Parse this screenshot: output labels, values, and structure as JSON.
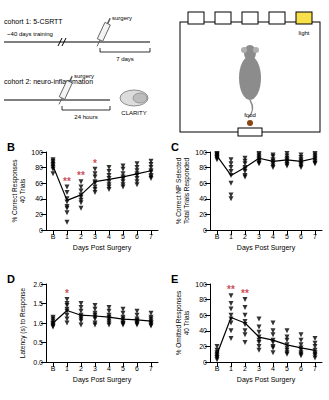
{
  "schematic": {
    "cohort_1": {
      "label": "cohort 1: 5-CSRTT",
      "training": "~40 days training",
      "surgery": "surgery",
      "interval": "7 days"
    },
    "cohort_2": {
      "label": "cohort 2: neuro-inflammation",
      "surgery": "surgery",
      "interval": "24 hours",
      "method": "CLARITY"
    },
    "apparatus": {
      "light": "light",
      "food": "food"
    }
  },
  "chart_data": [
    {
      "type": "line",
      "title": "B",
      "x_label": "Days Post Surgery",
      "y_label": "% Correct Responses\n40 Trials",
      "categories": [
        "B",
        "1",
        "2",
        "3",
        "4",
        "5",
        "6",
        "7"
      ],
      "values": [
        82,
        38,
        45,
        62,
        65,
        68,
        72,
        76
      ],
      "points": [
        [
          90,
          88,
          86,
          84,
          82,
          80,
          78,
          72
        ],
        [
          55,
          48,
          40,
          36,
          30,
          28,
          22,
          10
        ],
        [
          62,
          55,
          50,
          45,
          42,
          38,
          35,
          28
        ],
        [
          78,
          72,
          68,
          62,
          60,
          55,
          52,
          48
        ],
        [
          80,
          75,
          70,
          66,
          62,
          58,
          55,
          52
        ],
        [
          82,
          78,
          72,
          68,
          65,
          62,
          58,
          55
        ],
        [
          85,
          80,
          76,
          72,
          70,
          66,
          62,
          58
        ],
        [
          88,
          84,
          80,
          76,
          74,
          70,
          68,
          66
        ]
      ],
      "annotations": [
        {
          "category": "1",
          "text": "**"
        },
        {
          "category": "2",
          "text": "**"
        },
        {
          "category": "3",
          "text": "*"
        }
      ],
      "ylim": [
        0,
        100
      ],
      "yticks": [
        0,
        20,
        40,
        60,
        80,
        100
      ],
      "marker": "triangle-down",
      "color": "#000000",
      "grid": false
    },
    {
      "type": "line",
      "title": "C",
      "x_label": "Days Post Surgery",
      "y_label": "% Correct NP Selected\nTotal Trials Responded",
      "categories": [
        "B",
        "1",
        "2",
        "3",
        "4",
        "5",
        "6",
        "7"
      ],
      "values": [
        95,
        70,
        80,
        92,
        88,
        90,
        88,
        92
      ],
      "points": [
        [
          98,
          97,
          96,
          95,
          94,
          93,
          92,
          90
        ],
        [
          90,
          85,
          80,
          75,
          70,
          60,
          45,
          40
        ],
        [
          92,
          88,
          85,
          80,
          78,
          75,
          70,
          68
        ],
        [
          98,
          96,
          94,
          92,
          90,
          88,
          86,
          85
        ],
        [
          96,
          94,
          90,
          88,
          86,
          85,
          82,
          80
        ],
        [
          98,
          95,
          92,
          90,
          88,
          86,
          84,
          82
        ],
        [
          96,
          93,
          90,
          88,
          86,
          84,
          82,
          80
        ],
        [
          98,
          96,
          94,
          92,
          90,
          88,
          86,
          85
        ]
      ],
      "annotations": [],
      "ylim": [
        0,
        100
      ],
      "yticks": [
        0,
        20,
        40,
        60,
        80,
        100
      ],
      "marker": "triangle-down",
      "color": "#000000",
      "grid": false
    },
    {
      "type": "line",
      "title": "D",
      "x_label": "Days Post Surgery",
      "y_label": "Latency (s) to Response",
      "categories": [
        "B",
        "1",
        "2",
        "3",
        "4",
        "5",
        "6",
        "7"
      ],
      "values": [
        1.0,
        1.32,
        1.2,
        1.18,
        1.15,
        1.1,
        1.08,
        1.05
      ],
      "points": [
        [
          1.15,
          1.1,
          1.05,
          1.0,
          0.98,
          0.95,
          0.92,
          0.9
        ],
        [
          1.6,
          1.5,
          1.45,
          1.35,
          1.3,
          1.2,
          1.1,
          1.0
        ],
        [
          1.5,
          1.4,
          1.3,
          1.2,
          1.15,
          1.1,
          1.05,
          0.95
        ],
        [
          1.45,
          1.35,
          1.25,
          1.2,
          1.15,
          1.1,
          1.0,
          0.95
        ],
        [
          1.4,
          1.3,
          1.2,
          1.15,
          1.1,
          1.05,
          1.0,
          0.95
        ],
        [
          1.35,
          1.25,
          1.15,
          1.1,
          1.05,
          1.0,
          0.98,
          0.95
        ],
        [
          1.3,
          1.2,
          1.1,
          1.05,
          1.05,
          1.0,
          0.98,
          0.95
        ],
        [
          1.25,
          1.15,
          1.1,
          1.05,
          1.0,
          1.0,
          0.95,
          0.92
        ]
      ],
      "annotations": [
        {
          "category": "1",
          "text": "*"
        }
      ],
      "ylim": [
        0,
        2
      ],
      "yticks": [
        {
          "value": 0,
          "label": "0.0"
        },
        {
          "value": 0.5,
          "label": "0.5"
        },
        {
          "value": 1,
          "label": "1.0"
        },
        {
          "value": 1.5,
          "label": "1.5"
        },
        {
          "value": 2,
          "label": "2.0"
        }
      ],
      "marker": "triangle-down",
      "color": "#000000",
      "grid": false
    },
    {
      "type": "line",
      "title": "E",
      "x_label": "Days Post Surgery",
      "y_label": "% Omitted Responses\n40 Trials",
      "categories": [
        "B",
        "1",
        "2",
        "3",
        "4",
        "5",
        "6",
        "7"
      ],
      "values": [
        10,
        57,
        50,
        32,
        28,
        22,
        18,
        15
      ],
      "points": [
        [
          20,
          15,
          12,
          10,
          8,
          6,
          5,
          3
        ],
        [
          85,
          75,
          68,
          60,
          55,
          50,
          40,
          30
        ],
        [
          80,
          70,
          60,
          52,
          48,
          40,
          35,
          25
        ],
        [
          55,
          45,
          38,
          32,
          28,
          25,
          20,
          15
        ],
        [
          50,
          40,
          35,
          28,
          25,
          20,
          18,
          12
        ],
        [
          40,
          32,
          28,
          22,
          18,
          15,
          12,
          10
        ],
        [
          35,
          28,
          22,
          18,
          15,
          12,
          10,
          8
        ],
        [
          30,
          24,
          20,
          15,
          12,
          10,
          8,
          5
        ]
      ],
      "annotations": [
        {
          "category": "1",
          "text": "**"
        },
        {
          "category": "2",
          "text": "**"
        }
      ],
      "ylim": [
        0,
        100
      ],
      "yticks": [
        0,
        20,
        40,
        60,
        80,
        100
      ],
      "marker": "triangle-down",
      "color": "#000000",
      "grid": false
    }
  ]
}
